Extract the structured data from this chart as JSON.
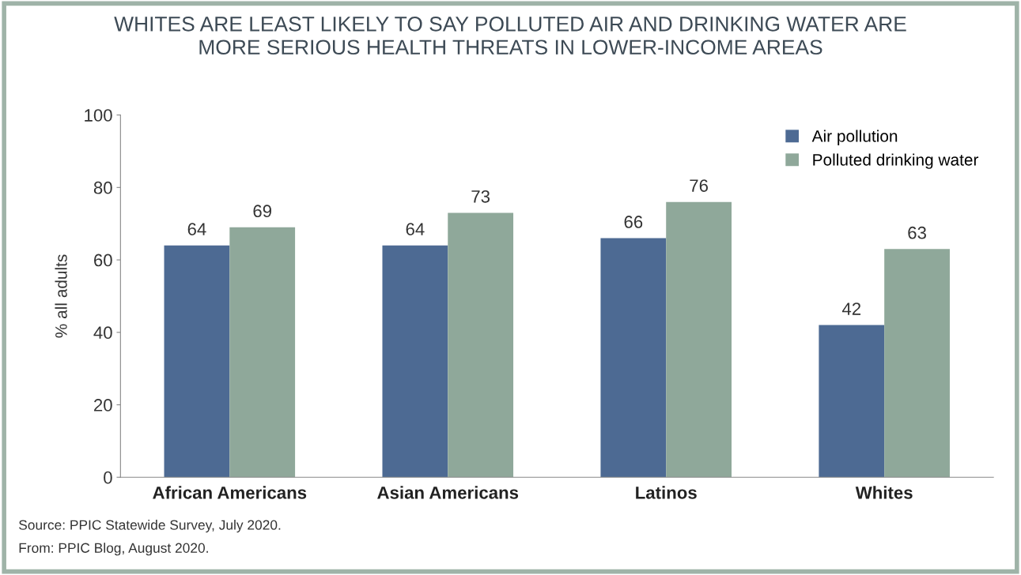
{
  "chart_data": {
    "type": "bar",
    "title": "WHITES ARE LEAST LIKELY TO SAY POLLUTED AIR AND DRINKING WATER ARE\nMORE SERIOUS HEALTH THREATS IN LOWER-INCOME AREAS",
    "ylabel": "% all adults",
    "categories": [
      "African Americans",
      "Asian Americans",
      "Latinos",
      "Whites"
    ],
    "series": [
      {
        "name": "Air pollution",
        "color": "#4d6a93",
        "values": [
          64,
          64,
          66,
          42
        ]
      },
      {
        "name": "Polluted drinking water",
        "color": "#8fa89a",
        "values": [
          69,
          73,
          76,
          63
        ]
      }
    ],
    "ylim": [
      0,
      100
    ],
    "yticks": [
      0,
      20,
      40,
      60,
      80,
      100
    ],
    "data_labels": true,
    "legend": "top right",
    "grid": false,
    "annotations": [
      "Source: PPIC Statewide Survey, July 2020.",
      "From: PPIC Blog, August 2020."
    ]
  }
}
